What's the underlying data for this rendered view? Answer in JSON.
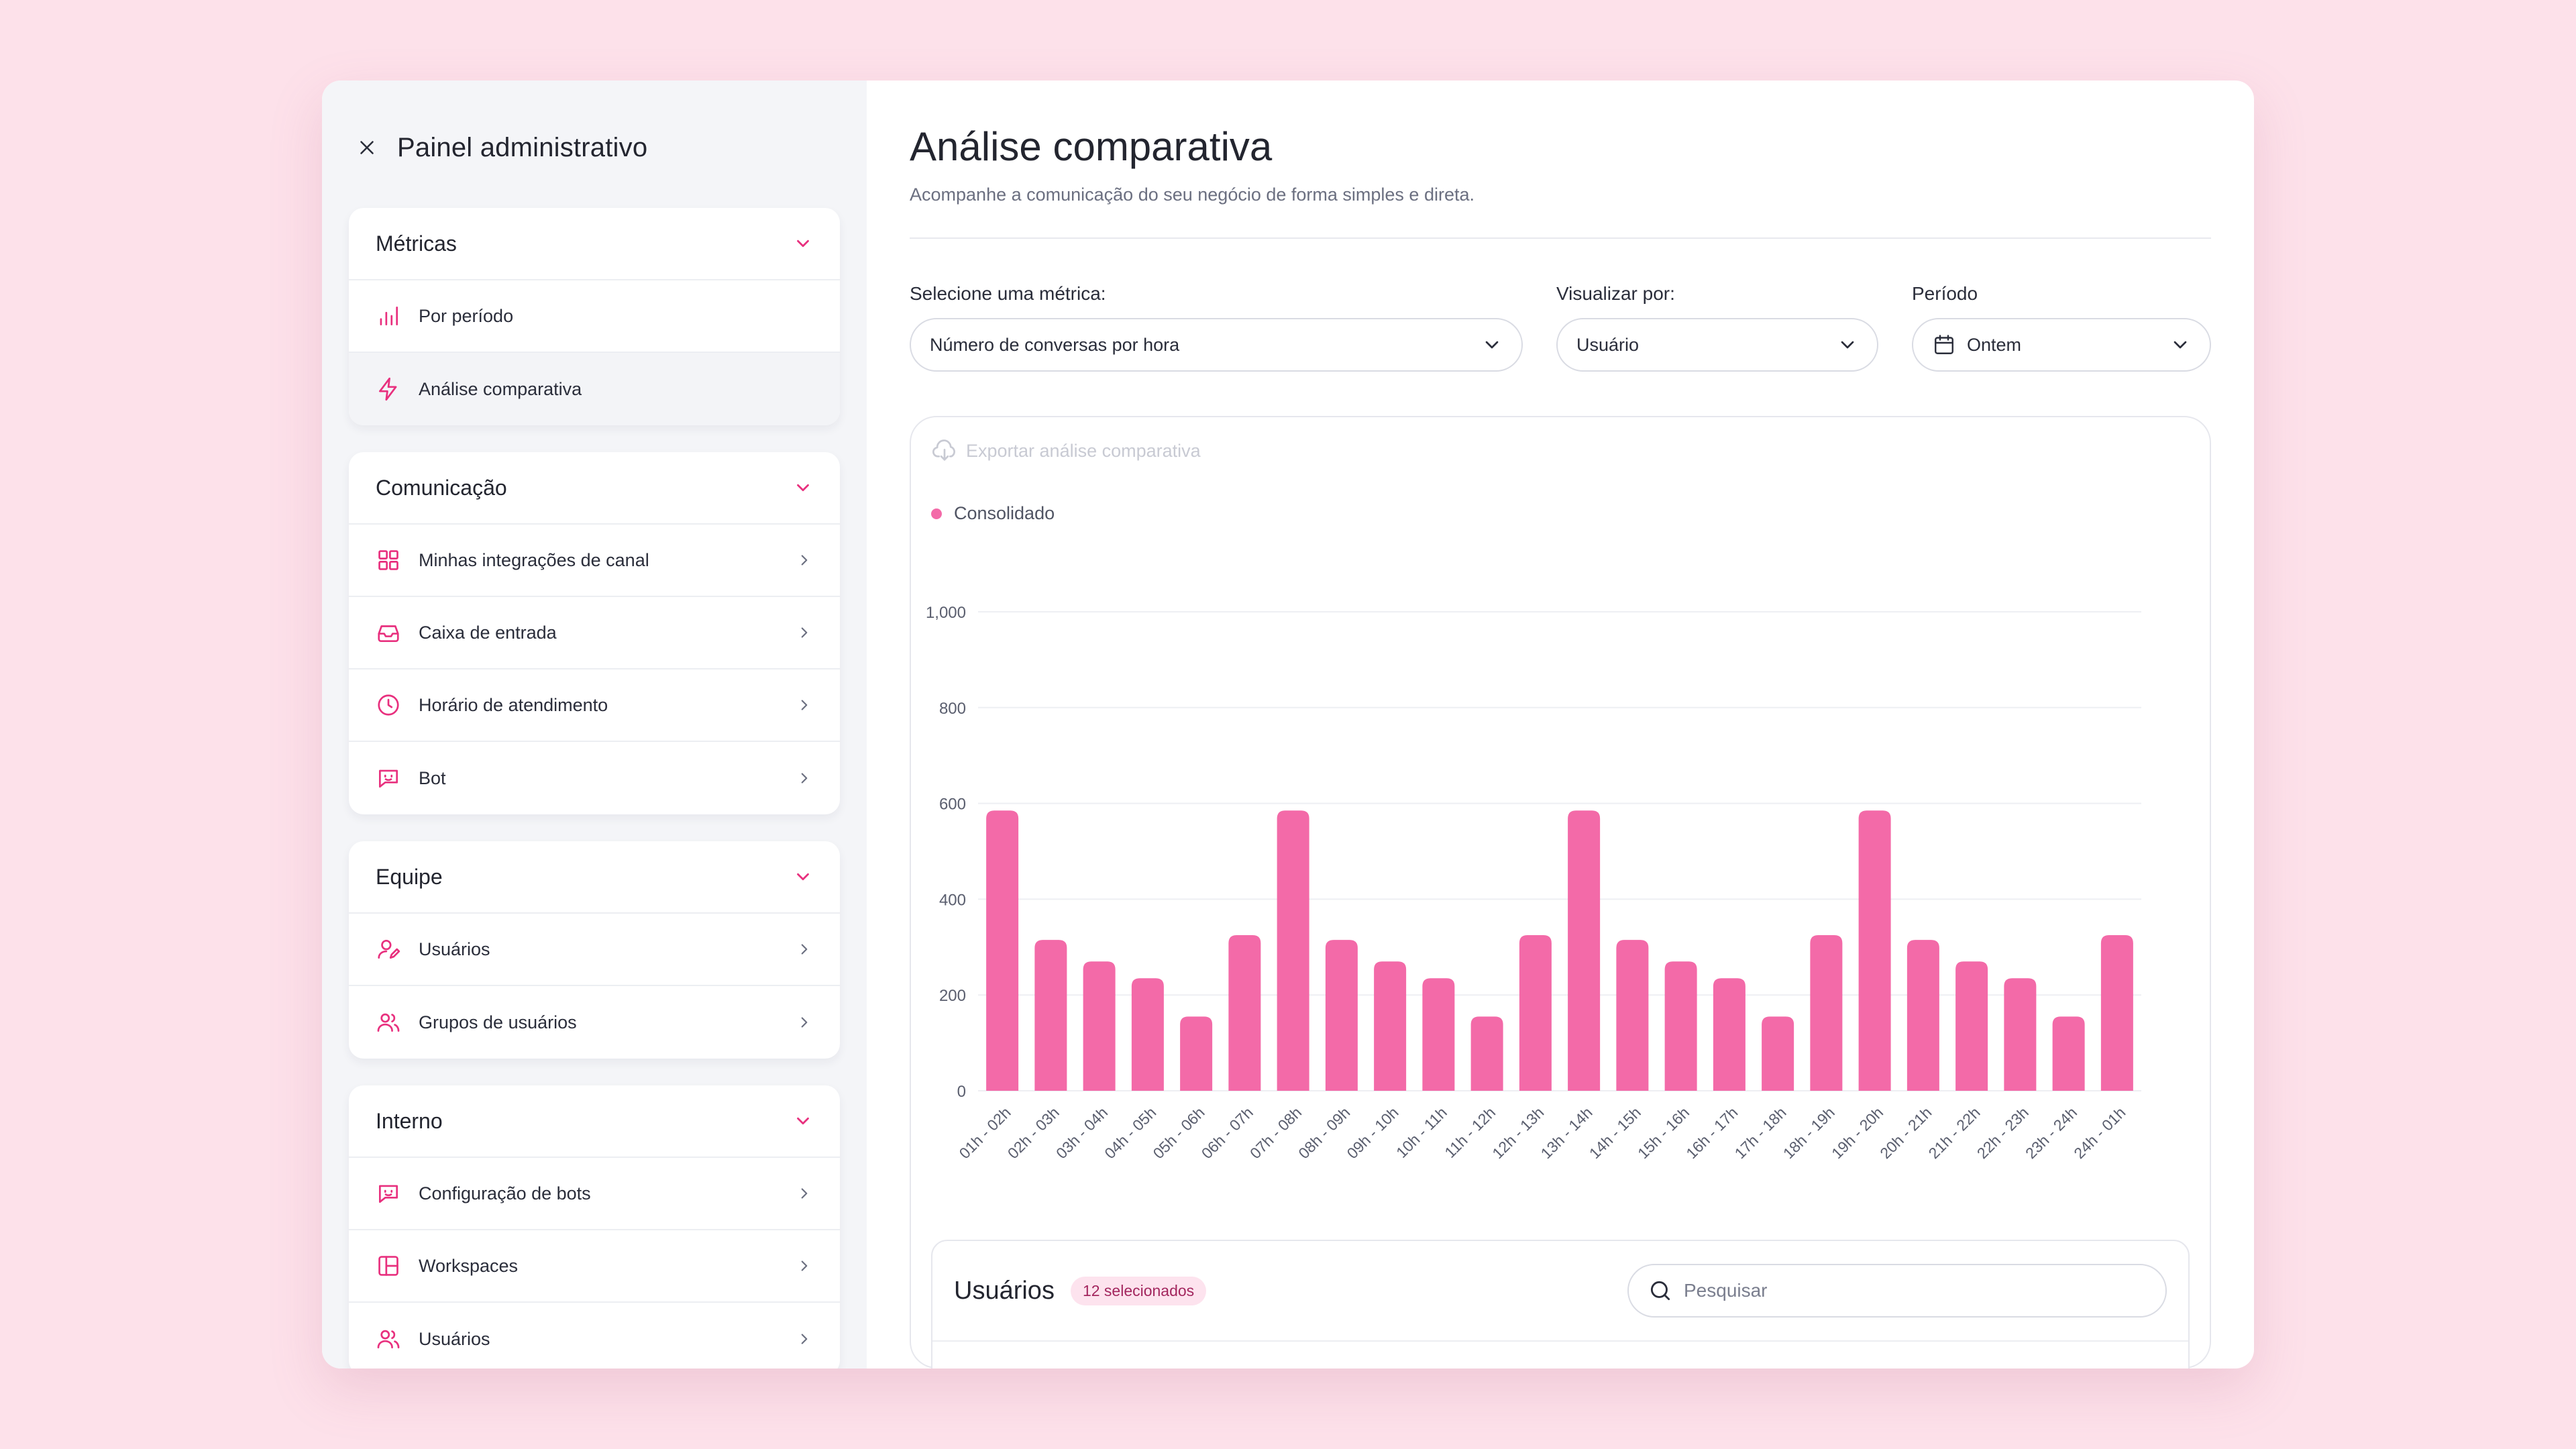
{
  "sidebar": {
    "title": "Painel administrativo",
    "groups": [
      {
        "label": "Métricas",
        "items": [
          {
            "label": "Por período",
            "icon": "bar-chart-icon"
          },
          {
            "label": "Análise comparativa",
            "icon": "lightning-icon"
          }
        ]
      },
      {
        "label": "Comunicação",
        "items": [
          {
            "label": "Minhas integrações de canal",
            "icon": "grid-icon"
          },
          {
            "label": "Caixa de entrada",
            "icon": "inbox-icon"
          },
          {
            "label": "Horário de atendimento",
            "icon": "clock-icon"
          },
          {
            "label": "Bot",
            "icon": "bot-icon"
          }
        ]
      },
      {
        "label": "Equipe",
        "items": [
          {
            "label": "Usuários",
            "icon": "user-edit-icon"
          },
          {
            "label": "Grupos de usuários",
            "icon": "users-icon"
          }
        ]
      },
      {
        "label": "Interno",
        "items": [
          {
            "label": "Configuração de bots",
            "icon": "bot-icon"
          },
          {
            "label": "Workspaces",
            "icon": "layout-icon"
          },
          {
            "label": "Usuários",
            "icon": "users-icon"
          }
        ]
      }
    ]
  },
  "main": {
    "title": "Análise comparativa",
    "subtitle": "Acompanhe a comunicação do seu negócio de forma simples e direta.",
    "filters": {
      "metric_label": "Selecione uma métrica:",
      "metric_value": "Número de conversas por hora",
      "view_label": "Visualizar por:",
      "view_value": "Usuário",
      "period_label": "Período",
      "period_value": "Ontem"
    },
    "export_label": "Exportar análise comparativa",
    "users": {
      "title": "Usuários",
      "badge": "12 selecionados",
      "search_placeholder": "Pesquisar"
    }
  },
  "colors": {
    "accent": "#e8307e",
    "bar": "#f36aa8"
  },
  "chart_data": {
    "type": "bar",
    "title": "",
    "xlabel": "",
    "ylabel": "",
    "ylim": [
      0,
      1000
    ],
    "yticks": [
      "0",
      "200",
      "400",
      "600",
      "800",
      "1,000"
    ],
    "categories": [
      "01h - 02h",
      "02h - 03h",
      "03h - 04h",
      "04h - 05h",
      "05h - 06h",
      "06h - 07h",
      "07h - 08h",
      "08h - 09h",
      "09h - 10h",
      "10h - 11h",
      "11h - 12h",
      "12h - 13h",
      "13h - 14h",
      "14h - 15h",
      "15h - 16h",
      "16h - 17h",
      "17h - 18h",
      "18h - 19h",
      "19h - 20h",
      "20h - 21h",
      "21h - 22h",
      "22h - 23h",
      "23h - 24h",
      "24h - 01h"
    ],
    "series": [
      {
        "name": "Consolidado",
        "values": [
          585,
          315,
          270,
          235,
          155,
          325,
          585,
          315,
          270,
          235,
          155,
          325,
          585,
          315,
          270,
          235,
          155,
          325,
          585,
          315,
          270,
          235,
          155,
          325
        ]
      }
    ]
  }
}
